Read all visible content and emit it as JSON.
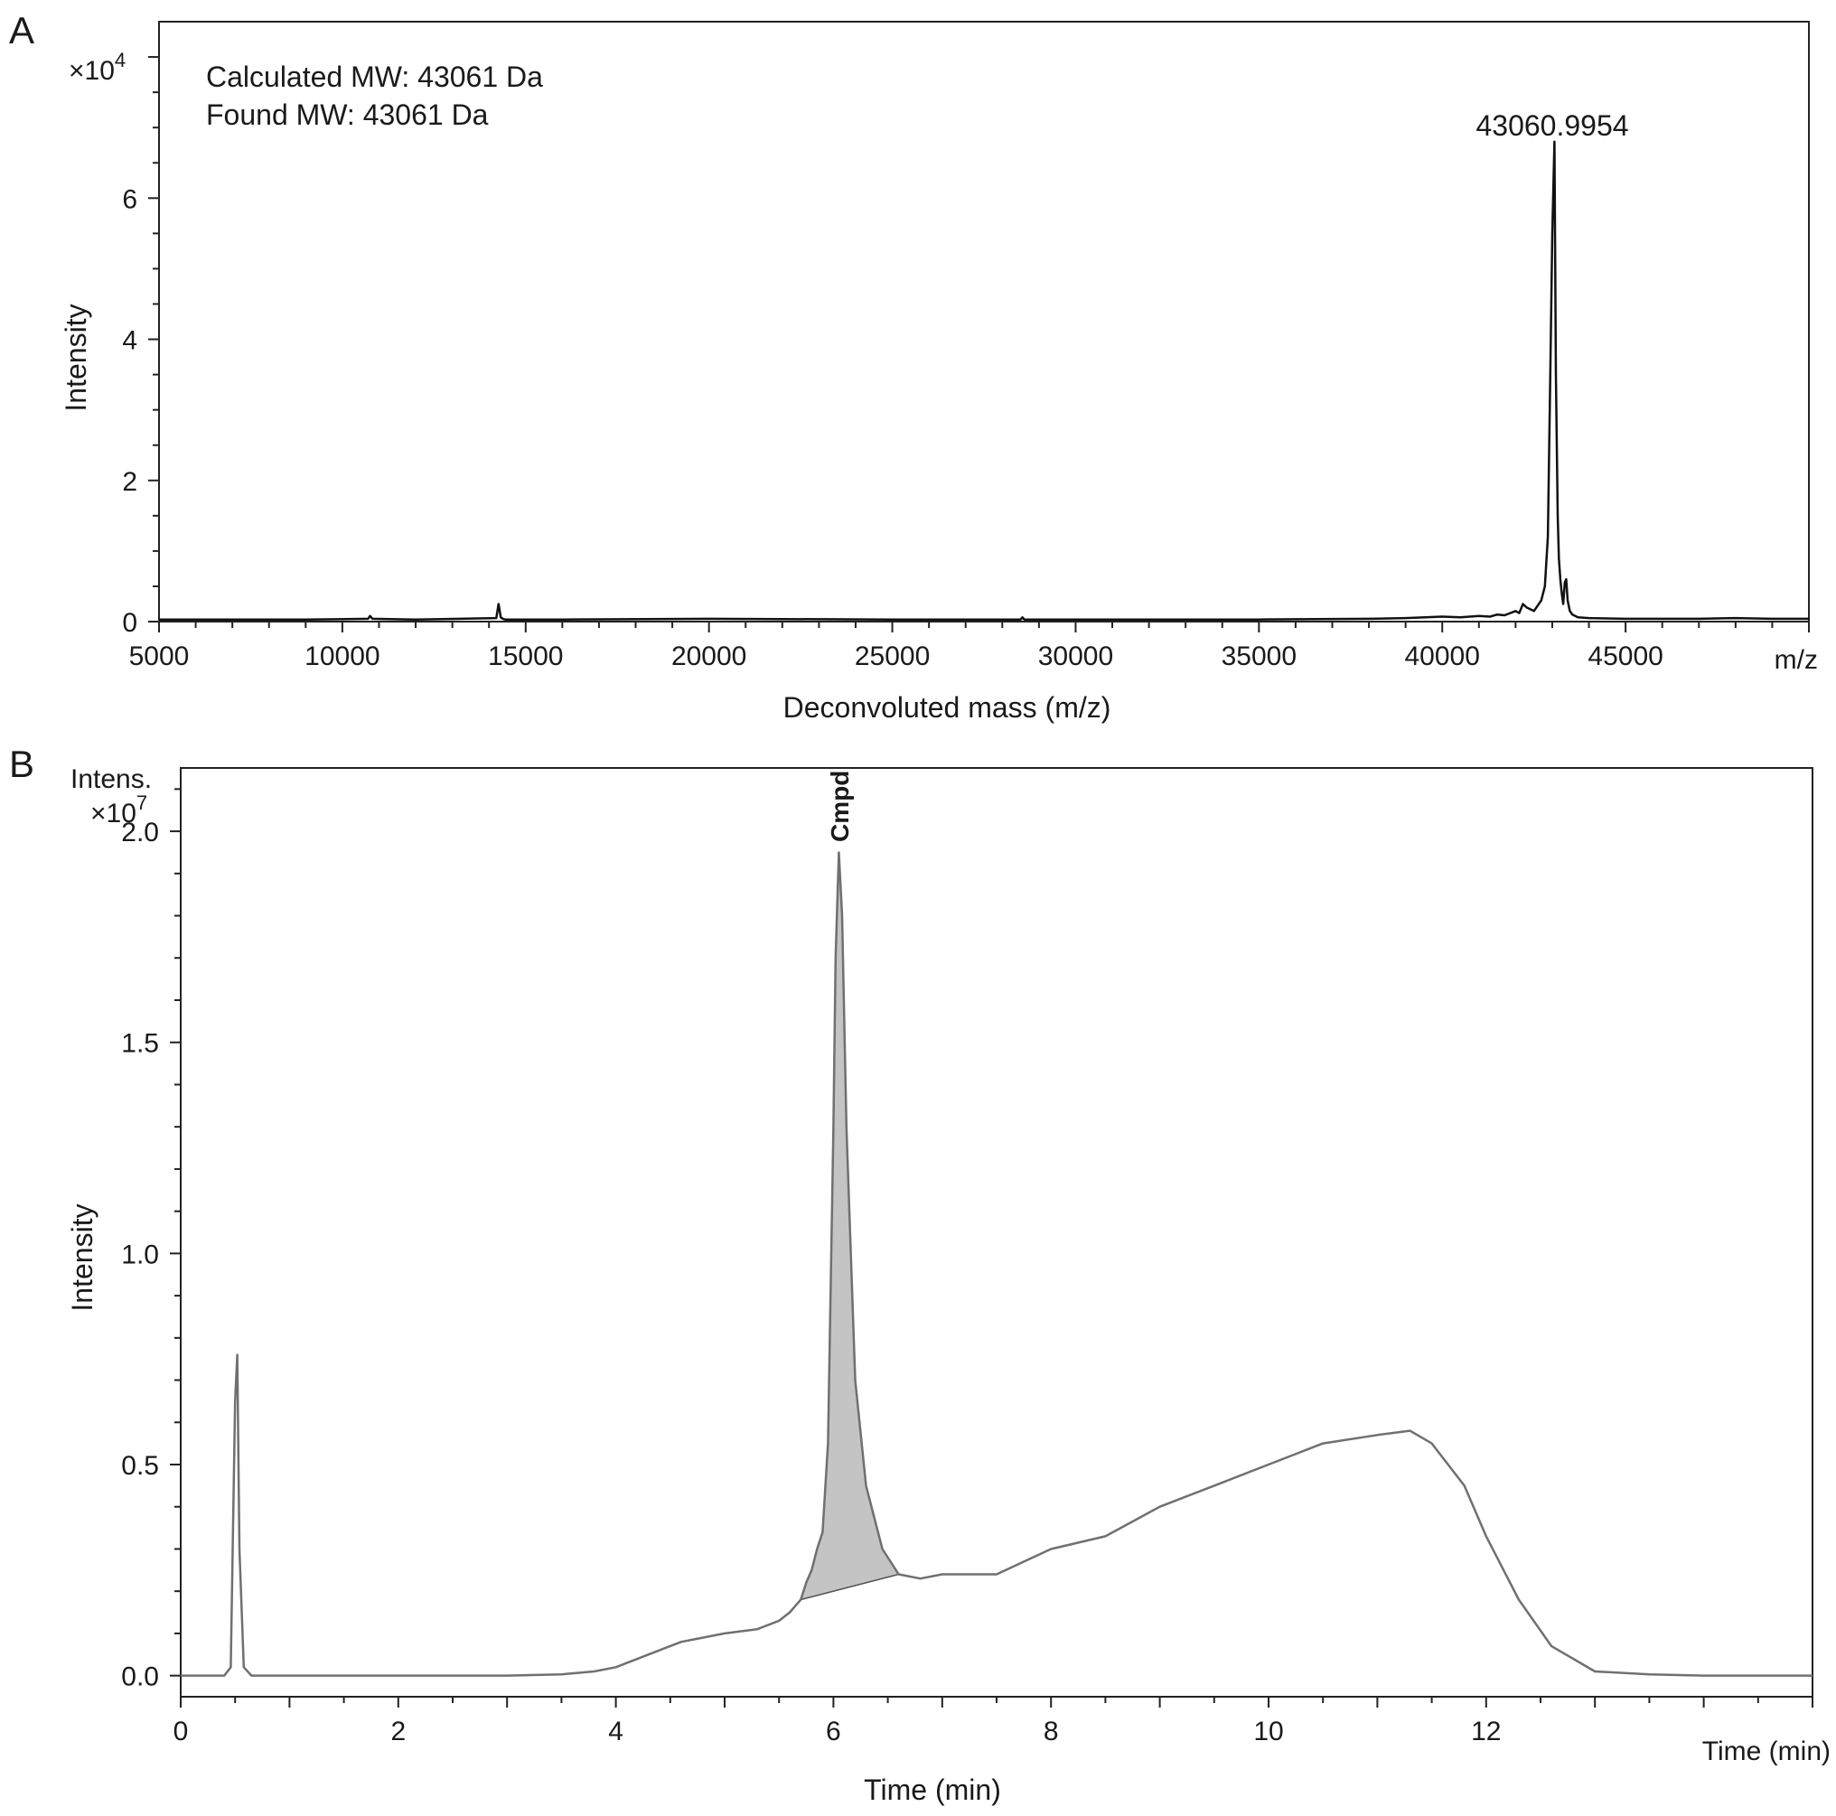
{
  "panels": {
    "a": {
      "letter": "A",
      "multiplier": "×10",
      "multiplier_exp": "4",
      "annotations": [
        "Calculated MW: 43061 Da",
        "Found MW: 43061 Da"
      ],
      "peak_label": "43060.9954",
      "ylabel": "Intensity",
      "xlabel": "Deconvoluted mass (m/z)",
      "xaxis_unit": "m/z",
      "xticks": [
        "5000",
        "10000",
        "15000",
        "20000",
        "25000",
        "30000",
        "35000",
        "40000",
        "45000"
      ],
      "yticks": [
        "0",
        "2",
        "4",
        "6"
      ]
    },
    "b": {
      "letter": "B",
      "top_label": "Intens.",
      "multiplier": "×10",
      "multiplier_exp": "7",
      "peak_label": "Cmpd",
      "ylabel": "Intensity",
      "xlabel": "Time (min)",
      "xaxis_unit": "Time (min)",
      "xticks": [
        "0",
        "2",
        "4",
        "6",
        "8",
        "10",
        "12"
      ],
      "yticks": [
        "0.0",
        "0.5",
        "1.0",
        "1.5",
        "2.0"
      ]
    }
  },
  "chart_data": [
    {
      "type": "line",
      "xlabel": "Deconvoluted mass (m/z)",
      "ylabel": "Intensity",
      "y_multiplier": "×10^4",
      "xlim": [
        5000,
        50000
      ],
      "ylim": [
        0,
        8.5
      ],
      "grid": false,
      "series": [
        {
          "x": [
            5000,
            7000,
            9000,
            10700,
            10760,
            10820,
            12000,
            14200,
            14260,
            14320,
            14380,
            14440,
            16000,
            20000,
            25000,
            28500,
            28550,
            28600,
            30000,
            35000,
            38000,
            39000,
            40000,
            40500,
            41000,
            41300,
            41500,
            41700,
            42000,
            42100,
            42200,
            42300,
            42500,
            42700,
            42800,
            42880,
            42950,
            43000,
            43061,
            43100,
            43150,
            43180,
            43220,
            43260,
            43300,
            43340,
            43380,
            43420,
            43480,
            43550,
            43700,
            44000,
            45000,
            46000,
            47000,
            48000,
            49000,
            50000
          ],
          "y": [
            0.03,
            0.03,
            0.03,
            0.04,
            0.08,
            0.04,
            0.03,
            0.05,
            0.25,
            0.06,
            0.04,
            0.03,
            0.03,
            0.04,
            0.03,
            0.03,
            0.06,
            0.03,
            0.03,
            0.03,
            0.04,
            0.05,
            0.07,
            0.06,
            0.08,
            0.07,
            0.1,
            0.09,
            0.15,
            0.12,
            0.25,
            0.2,
            0.15,
            0.3,
            0.5,
            1.2,
            3.6,
            5.5,
            6.8,
            3.5,
            1.5,
            0.9,
            0.6,
            0.4,
            0.25,
            0.55,
            0.6,
            0.3,
            0.15,
            0.1,
            0.06,
            0.05,
            0.04,
            0.04,
            0.04,
            0.05,
            0.04,
            0.04
          ]
        }
      ],
      "annotations": [
        "Calculated MW: 43061 Da",
        "Found MW: 43061 Da",
        "43060.9954"
      ]
    },
    {
      "type": "area",
      "xlabel": "Time (min)",
      "ylabel": "Intensity",
      "y_multiplier": "×10^7",
      "xlim": [
        0,
        15
      ],
      "ylim": [
        -0.05,
        2.15
      ],
      "grid": false,
      "series": [
        {
          "name": "Cmpd",
          "x": [
            0,
            0.4,
            0.46,
            0.5,
            0.52,
            0.54,
            0.58,
            0.65,
            1,
            2,
            3,
            3.5,
            3.8,
            4,
            4.2,
            4.4,
            4.6,
            5,
            5.3,
            5.5,
            5.6,
            5.7,
            5.75,
            5.8,
            5.85,
            5.9,
            5.95,
            6,
            6.02,
            6.05,
            6.08,
            6.12,
            6.2,
            6.3,
            6.45,
            6.6,
            6.8,
            7,
            7.5,
            8,
            8.5,
            9,
            9.5,
            10,
            10.5,
            11,
            11.3,
            11.5,
            11.8,
            12,
            12.3,
            12.6,
            13,
            13.5,
            14,
            15
          ],
          "y": [
            0,
            0,
            0.02,
            0.65,
            0.76,
            0.3,
            0.02,
            0,
            0,
            0,
            0,
            0.003,
            0.01,
            0.02,
            0.04,
            0.06,
            0.08,
            0.1,
            0.11,
            0.13,
            0.15,
            0.18,
            0.22,
            0.25,
            0.3,
            0.34,
            0.55,
            1.3,
            1.7,
            1.95,
            1.8,
            1.3,
            0.7,
            0.45,
            0.3,
            0.24,
            0.23,
            0.24,
            0.24,
            0.3,
            0.33,
            0.4,
            0.45,
            0.5,
            0.55,
            0.57,
            0.58,
            0.55,
            0.45,
            0.33,
            0.18,
            0.07,
            0.01,
            0.003,
            0,
            0
          ]
        }
      ],
      "annotations": [
        "Intens.",
        "Cmpd"
      ]
    }
  ]
}
